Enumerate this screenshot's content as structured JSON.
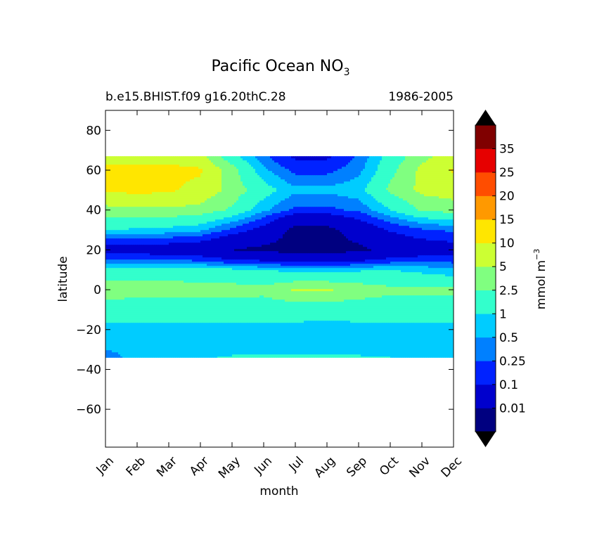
{
  "chart_data": {
    "type": "heatmap",
    "title": "Pacific Ocean NO",
    "title_subscript": "3",
    "subtitle_left": "b.e15.BHIST.f09 g16.20thC.28",
    "subtitle_right": "1986-2005",
    "xlabel": "month",
    "ylabel": "latitude",
    "x_ticks": [
      "Jan",
      "Feb",
      "Mar",
      "Apr",
      "May",
      "Jun",
      "Jul",
      "Aug",
      "Sep",
      "Oct",
      "Nov",
      "Dec"
    ],
    "y_ticks": [
      80,
      60,
      40,
      20,
      0,
      -20,
      -40,
      -60
    ],
    "y_tick_labels": [
      "80",
      "60",
      "40",
      "20",
      "0",
      "−20",
      "−40",
      "−60"
    ],
    "ylim": [
      -79,
      90
    ],
    "data_lat_range": [
      -34,
      67
    ],
    "colorbar": {
      "label": "mmol m",
      "label_superscript": "−3",
      "levels": [
        0.01,
        0.1,
        0.25,
        0.5,
        1,
        2.5,
        5,
        10,
        15,
        20,
        25,
        35
      ],
      "level_labels": [
        "0.01",
        "0.1",
        "0.25",
        "0.5",
        "1",
        "2.5",
        "5",
        "10",
        "15",
        "20",
        "25",
        "35"
      ],
      "colors": [
        "#000080",
        "#0000cd",
        "#0022ff",
        "#0080ff",
        "#00ccff",
        "#33ffcc",
        "#80ff80",
        "#ccff33",
        "#ffe600",
        "#ff9900",
        "#ff4d00",
        "#e60000",
        "#800000"
      ],
      "extend": "both",
      "under_color": "#000000",
      "over_color": "#000000"
    },
    "latitudes": [
      67,
      60,
      50,
      40,
      30,
      20,
      10,
      0,
      -10,
      -20,
      -30,
      -34
    ],
    "months": [
      1,
      2,
      3,
      4,
      5,
      6,
      7,
      8,
      9,
      10,
      11,
      12
    ],
    "values": [
      [
        8,
        8,
        8,
        6,
        1.5,
        0.3,
        0.08,
        0.08,
        0.3,
        1.5,
        4,
        7
      ],
      [
        12,
        12,
        12,
        11,
        3.5,
        0.6,
        0.2,
        0.2,
        0.4,
        2,
        6,
        11
      ],
      [
        11,
        12,
        11,
        8,
        4,
        1.5,
        0.6,
        0.6,
        0.8,
        3,
        6,
        7
      ],
      [
        4,
        4.5,
        4.5,
        4,
        2.2,
        0.6,
        0.2,
        0.2,
        0.3,
        1,
        2.8,
        3.5
      ],
      [
        1,
        0.9,
        0.8,
        0.6,
        0.2,
        0.06,
        0.005,
        0.005,
        0.03,
        0.12,
        0.22,
        0.3
      ],
      [
        0.05,
        0.05,
        0.04,
        0.03,
        0.01,
        0.006,
        0.005,
        0.005,
        0.006,
        0.02,
        0.04,
        0.05
      ],
      [
        1.5,
        1.6,
        1.5,
        1.4,
        1.2,
        1,
        0.8,
        0.8,
        0.9,
        1,
        0.8,
        0.6
      ],
      [
        4,
        3.6,
        3.6,
        3.6,
        3.5,
        3.2,
        5.5,
        5.5,
        4,
        3,
        3,
        3
      ],
      [
        1.5,
        1.5,
        1.5,
        1.5,
        1.5,
        1.5,
        1.5,
        1.5,
        1.5,
        1.5,
        1.5,
        1.5
      ],
      [
        0.8,
        0.8,
        0.8,
        0.8,
        0.8,
        0.8,
        0.8,
        0.7,
        0.8,
        0.8,
        0.8,
        0.8
      ],
      [
        0.5,
        0.6,
        0.7,
        0.75,
        0.75,
        0.75,
        0.75,
        0.75,
        0.6,
        0.6,
        0.6,
        0.6
      ],
      [
        0.4,
        0.6,
        0.8,
        0.9,
        1.1,
        1.2,
        1.3,
        1.3,
        1.2,
        1,
        0.6,
        0.5
      ]
    ]
  }
}
